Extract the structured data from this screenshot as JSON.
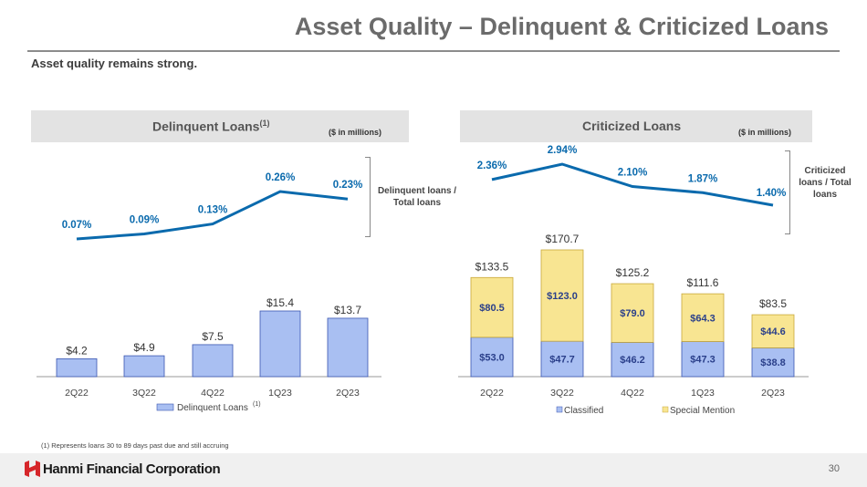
{
  "title": "Asset Quality – Delinquent & Criticized Loans",
  "subtitle": "Asset quality remains strong.",
  "footnote": "(1)   Represents loans 30 to 89 days past due and still accruing",
  "company": "Hanmi Financial Corporation",
  "page_number": "30",
  "chart_data": [
    {
      "type": "bar",
      "title": "Delinquent Loans",
      "title_note": "(1)",
      "units": "($ in millions)",
      "categories": [
        "2Q22",
        "3Q22",
        "4Q22",
        "1Q23",
        "2Q23"
      ],
      "values": [
        4.2,
        4.9,
        7.5,
        15.4,
        13.7
      ],
      "value_labels": [
        "$4.2",
        "$4.9",
        "$7.5",
        "$15.4",
        "$13.7"
      ],
      "legend": "Delinquent Loans",
      "legend_note": "(1)",
      "ratio_series": {
        "name": "Delinquent loans / Total loans",
        "values": [
          0.07,
          0.09,
          0.13,
          0.26,
          0.23
        ],
        "labels": [
          "0.07%",
          "0.09%",
          "0.13%",
          "0.26%",
          "0.23%"
        ]
      },
      "colors": {
        "bar": "#a9bff2",
        "line": "#0a6aad"
      }
    },
    {
      "type": "bar",
      "stacked": true,
      "title": "Criticized Loans",
      "units": "($ in millions)",
      "categories": [
        "2Q22",
        "3Q22",
        "4Q22",
        "1Q23",
        "2Q23"
      ],
      "series": [
        {
          "name": "Classified",
          "values": [
            53.0,
            47.7,
            46.2,
            47.3,
            38.8
          ],
          "labels": [
            "$53.0",
            "$47.7",
            "$46.2",
            "$47.3",
            "$38.8"
          ],
          "color": "#a9bff2"
        },
        {
          "name": "Special Mention",
          "values": [
            80.5,
            123.0,
            79.0,
            64.3,
            44.6
          ],
          "labels": [
            "$80.5",
            "$123.0",
            "$79.0",
            "$64.3",
            "$44.6"
          ],
          "color": "#f8e592"
        }
      ],
      "totals": [
        133.5,
        170.7,
        125.2,
        111.6,
        83.5
      ],
      "total_labels": [
        "$133.5",
        "$170.7",
        "$125.2",
        "$111.6",
        "$83.5"
      ],
      "ratio_series": {
        "name": "Criticized loans / Total loans",
        "values": [
          2.36,
          2.94,
          2.1,
          1.87,
          1.4
        ],
        "labels": [
          "2.36%",
          "2.94%",
          "2.10%",
          "1.87%",
          "1.40%"
        ]
      },
      "colors": {
        "line": "#0a6aad",
        "segment_text": "#2a3f8a"
      }
    }
  ]
}
